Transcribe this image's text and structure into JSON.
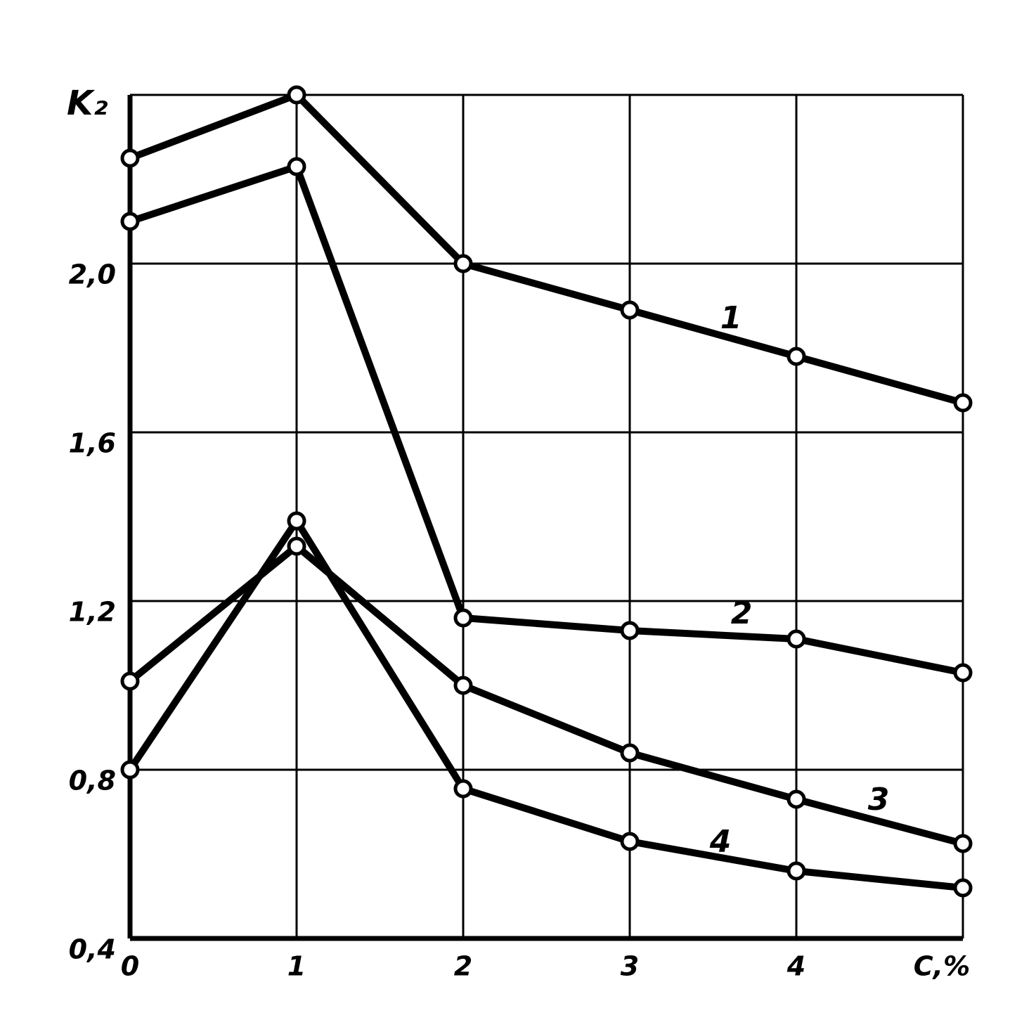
{
  "chart_data": {
    "type": "line",
    "ylabel": "K₂",
    "x": [
      0,
      1,
      2,
      3,
      4,
      5
    ],
    "xlim": [
      0,
      5
    ],
    "xticks": [
      0,
      1,
      2,
      3,
      4,
      {
        "value": 5,
        "label": "C,%"
      }
    ],
    "ylim": [
      0.4,
      2.4
    ],
    "yticks": [
      {
        "value": 0.4,
        "label": "0,4"
      },
      {
        "value": 0.8,
        "label": "0,8"
      },
      {
        "value": 1.2,
        "label": "1,2"
      },
      {
        "value": 1.6,
        "label": "1,6"
      },
      {
        "value": 2.0,
        "label": "2,0"
      },
      2.4
    ],
    "grid": true,
    "series": [
      {
        "name": "1",
        "color": "#000000",
        "values": [
          2.25,
          2.4,
          2.0,
          1.89,
          1.78,
          1.67
        ]
      },
      {
        "name": "2",
        "color": "#000000",
        "values": [
          2.1,
          2.23,
          1.16,
          1.13,
          1.11,
          1.03
        ]
      },
      {
        "name": "3",
        "color": "#000000",
        "values": [
          1.01,
          1.33,
          1.0,
          0.84,
          0.73,
          0.625
        ]
      },
      {
        "name": "4",
        "color": "#000000",
        "values": [
          0.8,
          1.39,
          0.755,
          0.63,
          0.56,
          0.52
        ]
      }
    ]
  }
}
